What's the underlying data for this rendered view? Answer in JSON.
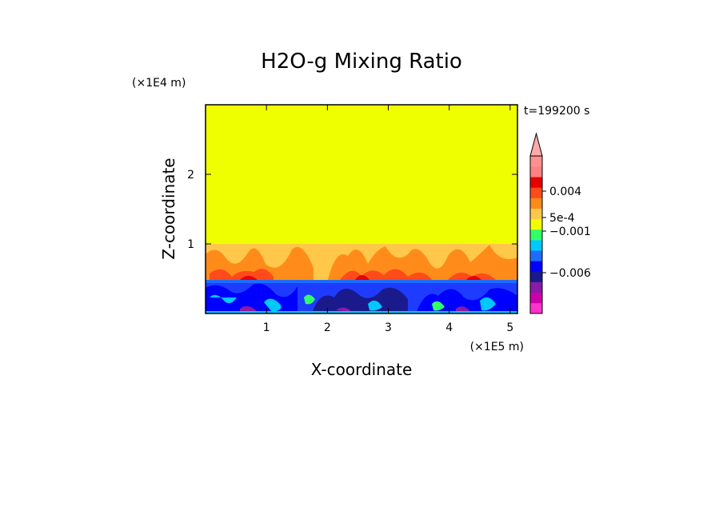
{
  "chart_data": {
    "type": "heatmap",
    "title": "H2O-g Mixing Ratio",
    "xlabel": "X-coordinate",
    "ylabel": "Z-coordinate",
    "x_scale_label": "(×1E5 m)",
    "y_scale_label": "(×1E4 m)",
    "time_label": "t=199200 s",
    "xlim": [
      0,
      5.12
    ],
    "ylim": [
      0,
      3
    ],
    "x_ticks": [
      "1",
      "2",
      "3",
      "4",
      "5"
    ],
    "x_tick_values": [
      1,
      2,
      3,
      4,
      5
    ],
    "y_ticks": [
      "1",
      "2"
    ],
    "y_tick_values": [
      1,
      2
    ],
    "colorbar_labels": [
      "0.004",
      "5e-4",
      "−0.001",
      "−0.006"
    ],
    "colorbar_colors": [
      "#ff33cc",
      "#cc00aa",
      "#8a1aa8",
      "#1a1a8c",
      "#0000ff",
      "#1e6cff",
      "#00c8ff",
      "#33ff66",
      "#f0ff00",
      "#ffc84a",
      "#ff8c1a",
      "#ff4a1a",
      "#e60000",
      "#ff8080",
      "#ff9090"
    ],
    "colorbar_extend": "max",
    "regions": [
      {
        "name": "upper layer",
        "z_range": [
          1.0,
          3.0
        ],
        "color": "#f0ff00"
      },
      {
        "name": "transition layer",
        "z_range": [
          0.52,
          1.0
        ],
        "color": "#ffc84a"
      },
      {
        "name": "lower layer",
        "z_range": [
          0.0,
          0.52
        ],
        "color": "#1e3cff"
      }
    ]
  }
}
